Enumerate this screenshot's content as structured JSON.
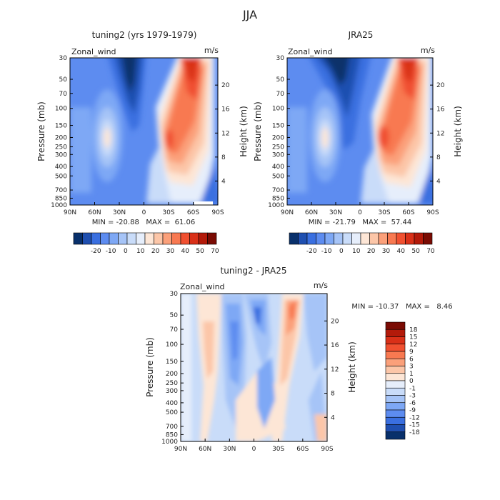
{
  "figure": {
    "title": "JJA"
  },
  "chart_data": [
    {
      "type": "heatmap",
      "title": "tuning2 (yrs 1979-1979)",
      "variable": "Zonal_wind",
      "units": "m/s",
      "xlabel": "",
      "ylabel": "Pressure (mb)",
      "ylabel_right": "Height (km)",
      "x_ticks": [
        "90N",
        "60N",
        "30N",
        "0",
        "30S",
        "60S",
        "90S"
      ],
      "y_ticks": [
        "30",
        "50",
        "70",
        "100",
        "150",
        "200",
        "250",
        "300",
        "400",
        "500",
        "700",
        "850",
        "1000"
      ],
      "height_ticks": [
        "20",
        "16",
        "12",
        "8",
        "4"
      ],
      "min_max": "MIN = -20.88   MAX =  61.06",
      "colorbar": {
        "labels": [
          "-20",
          "-10",
          "0",
          "10",
          "20",
          "30",
          "40",
          "50",
          "70"
        ],
        "colors": [
          "#08306b",
          "#1f4fb0",
          "#3a6fe0",
          "#5d8cf0",
          "#7ea8f5",
          "#a6c4f7",
          "#c9dcf9",
          "#e6eefb",
          "#fde6d6",
          "#fcc6a8",
          "#fba07a",
          "#f87951",
          "#f05030",
          "#d93018",
          "#b31a0a",
          "#7a0b03"
        ]
      }
    },
    {
      "type": "heatmap",
      "title": "JRA25",
      "variable": "Zonal_wind",
      "units": "m/s",
      "xlabel": "",
      "ylabel": "Pressure (mb)",
      "ylabel_right": "Height (km)",
      "x_ticks": [
        "90N",
        "60N",
        "30N",
        "0",
        "30S",
        "60S",
        "90S"
      ],
      "y_ticks": [
        "30",
        "50",
        "70",
        "100",
        "150",
        "200",
        "250",
        "300",
        "400",
        "500",
        "700",
        "850",
        "1000"
      ],
      "height_ticks": [
        "20",
        "16",
        "12",
        "8",
        "4"
      ],
      "min_max": "MIN = -21.79   MAX =  57.44",
      "colorbar": {
        "labels": [
          "-20",
          "-10",
          "0",
          "10",
          "20",
          "30",
          "40",
          "50",
          "70"
        ],
        "colors": [
          "#08306b",
          "#1f4fb0",
          "#3a6fe0",
          "#5d8cf0",
          "#7ea8f5",
          "#a6c4f7",
          "#c9dcf9",
          "#e6eefb",
          "#fde6d6",
          "#fcc6a8",
          "#fba07a",
          "#f87951",
          "#f05030",
          "#d93018",
          "#b31a0a",
          "#7a0b03"
        ]
      }
    },
    {
      "type": "heatmap",
      "title": "tuning2 - JRA25",
      "variable": "Zonal_wind",
      "units": "m/s",
      "xlabel": "",
      "ylabel": "Pressure (mb)",
      "ylabel_right": "Height (km)",
      "x_ticks": [
        "90N",
        "60N",
        "30N",
        "0",
        "30S",
        "60S",
        "90S"
      ],
      "y_ticks": [
        "30",
        "50",
        "70",
        "100",
        "150",
        "200",
        "250",
        "300",
        "400",
        "500",
        "700",
        "850",
        "1000"
      ],
      "height_ticks": [
        "20",
        "16",
        "12",
        "8",
        "4"
      ],
      "min_max": "MIN = -10.37   MAX =   8.46",
      "colorbar": {
        "labels": [
          "18",
          "15",
          "12",
          "9",
          "6",
          "3",
          "1",
          "0",
          "-1",
          "-3",
          "-6",
          "-9",
          "-12",
          "-15",
          "-18"
        ],
        "colors": [
          "#7a0b03",
          "#b31a0a",
          "#d93018",
          "#f05030",
          "#f87951",
          "#fba07a",
          "#fcc6a8",
          "#fde6d6",
          "#e6eefb",
          "#c9dcf9",
          "#a6c4f7",
          "#7ea8f5",
          "#5d8cf0",
          "#3a6fe0",
          "#1f4fb0",
          "#08306b"
        ]
      }
    }
  ]
}
